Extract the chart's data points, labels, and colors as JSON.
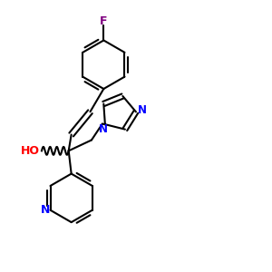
{
  "background_color": "#ffffff",
  "figsize": [
    3.0,
    3.0
  ],
  "dpi": 100,
  "bond_color": "#000000",
  "F_color": "#800080",
  "N_color": "#0000ff",
  "O_color": "#ff0000",
  "HO_color": "#ff0000",
  "lw": 1.5,
  "xlim": [
    0.0,
    1.0
  ],
  "ylim": [
    0.0,
    1.0
  ]
}
